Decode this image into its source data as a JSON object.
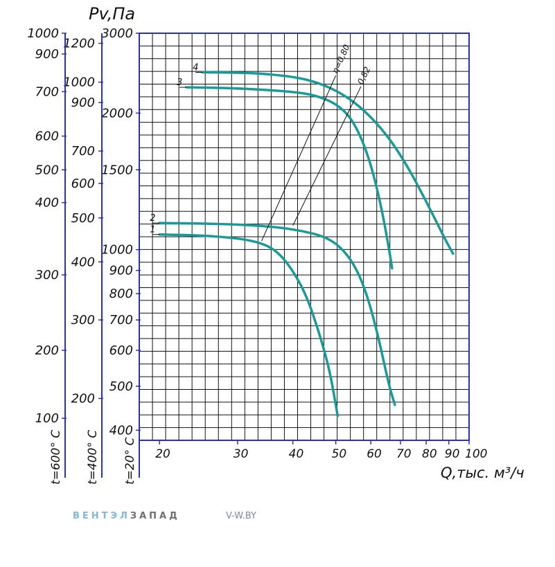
{
  "chart_data": {
    "type": "line",
    "title": "",
    "ylabel": "Pv,Па",
    "xlabel": "Q,тыс. м³/ч",
    "xscale": "log",
    "yscale": "log",
    "xlim": [
      18,
      100
    ],
    "ylim": [
      380,
      3000
    ],
    "x_ticks": [
      "20",
      "30",
      "40",
      "50",
      "60",
      "70",
      "80",
      "90",
      "100"
    ],
    "x_tick_values": [
      20,
      30,
      40,
      50,
      60,
      70,
      80,
      90,
      100
    ],
    "y_axes": [
      {
        "name": "t=20° C",
        "ticks": [
          {
            "label": "3000",
            "value": 3000
          },
          {
            "label": "2000",
            "value": 2000
          },
          {
            "label": "1500",
            "value": 1500
          },
          {
            "label": "1000",
            "value": 1000
          },
          {
            "label": "900",
            "value": 900
          },
          {
            "label": "800",
            "value": 800
          },
          {
            "label": "700",
            "value": 700
          },
          {
            "label": "600",
            "value": 600
          },
          {
            "label": "500",
            "value": 500
          },
          {
            "label": "400",
            "value": 400
          }
        ]
      },
      {
        "name": "t=400° C",
        "ticks": [
          {
            "label": "1200",
            "value": 2850
          },
          {
            "label": "1000",
            "value": 2340
          },
          {
            "label": "900",
            "value": 2110
          },
          {
            "label": "700",
            "value": 1650
          },
          {
            "label": "600",
            "value": 1400
          },
          {
            "label": "500",
            "value": 1175
          },
          {
            "label": "400",
            "value": 940
          },
          {
            "label": "300",
            "value": 700
          },
          {
            "label": "200",
            "value": 470
          }
        ]
      },
      {
        "name": "t=600° C",
        "ticks": [
          {
            "label": "1000",
            "value": 3000
          },
          {
            "label": "900",
            "value": 2700
          },
          {
            "label": "700",
            "value": 2230
          },
          {
            "label": "600",
            "value": 1780
          },
          {
            "label": "500",
            "value": 1500
          },
          {
            "label": "400",
            "value": 1270
          },
          {
            "label": "300",
            "value": 880
          },
          {
            "label": "200",
            "value": 600
          },
          {
            "label": "100",
            "value": 425
          }
        ]
      }
    ],
    "series": [
      {
        "name": "1",
        "points": [
          [
            20,
            1080
          ],
          [
            25,
            1075
          ],
          [
            30,
            1060
          ],
          [
            34,
            1035
          ],
          [
            37,
            990
          ],
          [
            40,
            900
          ],
          [
            43,
            790
          ],
          [
            46,
            650
          ],
          [
            48.5,
            540
          ],
          [
            50.5,
            430
          ]
        ]
      },
      {
        "name": "2",
        "points": [
          [
            20,
            1145
          ],
          [
            28,
            1140
          ],
          [
            36,
            1125
          ],
          [
            42,
            1100
          ],
          [
            47,
            1070
          ],
          [
            51,
            1020
          ],
          [
            55,
            930
          ],
          [
            58.5,
            810
          ],
          [
            62,
            660
          ],
          [
            66,
            500
          ],
          [
            68,
            455
          ]
        ]
      },
      {
        "name": "3",
        "points": [
          [
            23,
            2280
          ],
          [
            30,
            2270
          ],
          [
            40,
            2230
          ],
          [
            45,
            2190
          ],
          [
            50,
            2100
          ],
          [
            54,
            1960
          ],
          [
            57.5,
            1740
          ],
          [
            60.5,
            1500
          ],
          [
            63.5,
            1230
          ],
          [
            66,
            1000
          ],
          [
            67,
            910
          ]
        ]
      },
      {
        "name": "4",
        "points": [
          [
            25,
            2460
          ],
          [
            32,
            2455
          ],
          [
            40,
            2410
          ],
          [
            46,
            2330
          ],
          [
            52,
            2200
          ],
          [
            58,
            2030
          ],
          [
            65,
            1800
          ],
          [
            72,
            1550
          ],
          [
            80,
            1280
          ],
          [
            88,
            1060
          ],
          [
            92,
            980
          ]
        ]
      }
    ],
    "efficiency_lines": [
      {
        "label": "η=0,80",
        "from": [
          34,
          1045
        ],
        "to": [
          50,
          2420
        ]
      },
      {
        "label": "0,82",
        "from": [
          40,
          1130
        ],
        "to": [
          57,
          2290
        ]
      }
    ],
    "grid": true,
    "line_color": "#179a9a",
    "axis_color": "#2430c8"
  },
  "brand": {
    "name_part1": "ВЕНТЭЛ",
    "name_part2": "ЗАПАД",
    "site": "V-W.BY"
  }
}
